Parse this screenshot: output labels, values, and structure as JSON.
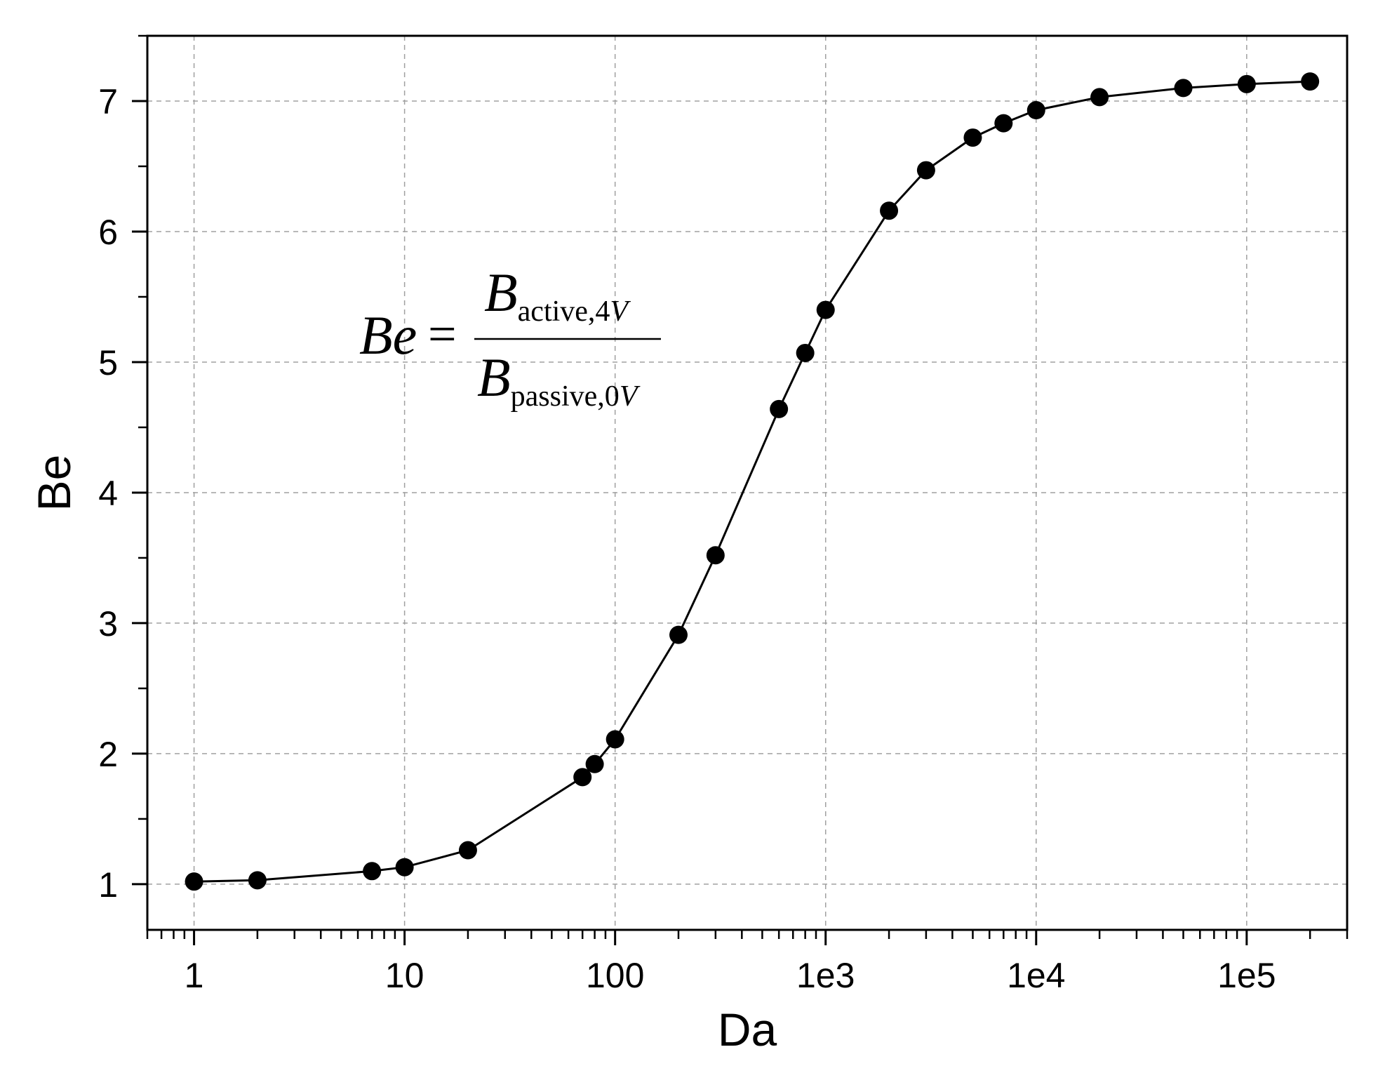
{
  "chart_data": {
    "type": "line",
    "xlabel": "Da",
    "ylabel": "Be",
    "xscale": "log",
    "xlim": [
      0.6,
      300000
    ],
    "ylim": [
      0.65,
      7.5
    ],
    "grid": true,
    "marker": "filled-circle",
    "line_color": "#000000",
    "x_ticks": [
      {
        "value": 1,
        "label": "1"
      },
      {
        "value": 10,
        "label": "10"
      },
      {
        "value": 100,
        "label": "100"
      },
      {
        "value": 1000,
        "label": "1e3"
      },
      {
        "value": 10000,
        "label": "1e4"
      },
      {
        "value": 100000,
        "label": "1e5"
      }
    ],
    "y_ticks": [
      {
        "value": 1,
        "label": "1"
      },
      {
        "value": 2,
        "label": "2"
      },
      {
        "value": 3,
        "label": "3"
      },
      {
        "value": 4,
        "label": "4"
      },
      {
        "value": 5,
        "label": "5"
      },
      {
        "value": 6,
        "label": "6"
      },
      {
        "value": 7,
        "label": "7"
      }
    ],
    "series": [
      {
        "x": [
          1,
          2,
          7,
          10,
          20,
          70,
          80,
          100,
          200,
          300,
          600,
          800,
          1000,
          2000,
          3000,
          5000,
          7000,
          10000,
          20000,
          50000,
          100000,
          200000
        ],
        "y": [
          1.02,
          1.03,
          1.1,
          1.13,
          1.26,
          1.82,
          1.92,
          2.11,
          2.91,
          3.52,
          4.64,
          5.07,
          5.4,
          6.16,
          6.47,
          6.72,
          6.83,
          6.93,
          7.03,
          7.1,
          7.13,
          7.15
        ]
      }
    ],
    "annotation": {
      "lhs": "Be",
      "equals": "=",
      "numerator_main": "B",
      "numerator_sub": "active,4",
      "numerator_sub_var": "V",
      "denominator_main": "B",
      "denominator_sub": "passive,0",
      "denominator_sub_var": "V"
    }
  }
}
